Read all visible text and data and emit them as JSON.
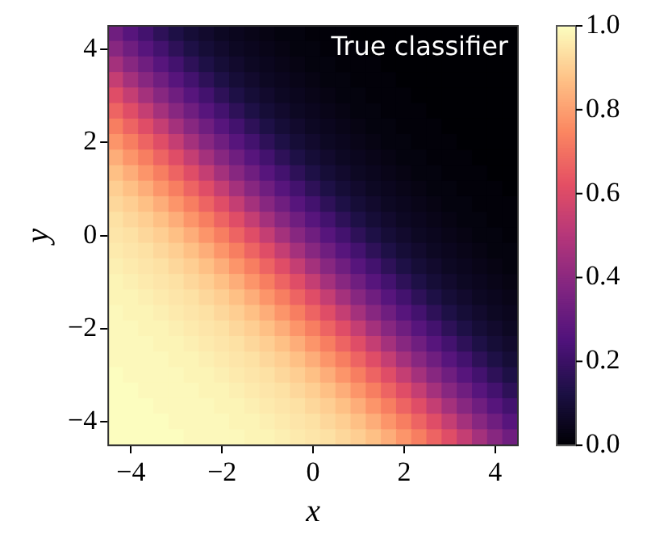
{
  "chart_data": {
    "type": "heatmap",
    "title": "True classifier",
    "xlabel": "x",
    "ylabel": "y",
    "categories": [
      null,
      "−4",
      null,
      null,
      null,
      null,
      null,
      "−2",
      null,
      null,
      null,
      null,
      null,
      "0",
      null,
      null,
      null,
      null,
      null,
      "2",
      null,
      null,
      null,
      null,
      null,
      "4",
      null
    ],
    "y_categories": [
      null,
      "4",
      null,
      null,
      null,
      null,
      null,
      "2",
      null,
      null,
      null,
      null,
      null,
      "0",
      null,
      null,
      null,
      null,
      null,
      "−2",
      null,
      null,
      null,
      null,
      null,
      "−4",
      null
    ],
    "cells": [
      [
        0.33,
        0.27,
        0.22,
        0.17,
        0.13,
        0.1,
        0.08,
        0.06,
        0.05,
        0.04,
        0.03,
        0.02,
        0.02,
        0.01,
        0.01,
        0.01,
        0,
        0,
        0,
        0,
        0,
        0,
        0,
        0,
        0,
        0,
        0
      ],
      [
        0.39,
        0.33,
        0.27,
        0.22,
        0.17,
        0.13,
        0.1,
        0.08,
        0.06,
        0.05,
        0.04,
        0.03,
        0.02,
        0.02,
        0.01,
        0.01,
        0.01,
        0,
        0,
        0,
        0,
        0,
        0,
        0,
        0,
        0,
        0
      ],
      [
        0.46,
        0.39,
        0.33,
        0.27,
        0.22,
        0.17,
        0.13,
        0.1,
        0.08,
        0.06,
        0.05,
        0.04,
        0.03,
        0.02,
        0.02,
        0.01,
        0.01,
        0.01,
        0,
        0,
        0,
        0,
        0,
        0,
        0,
        0,
        0
      ],
      [
        0.54,
        0.46,
        0.39,
        0.33,
        0.27,
        0.22,
        0.17,
        0.13,
        0.1,
        0.08,
        0.06,
        0.05,
        0.04,
        0.03,
        0.02,
        0.02,
        0.01,
        0.01,
        0.01,
        0,
        0,
        0,
        0,
        0,
        0,
        0,
        0
      ],
      [
        0.61,
        0.54,
        0.46,
        0.39,
        0.33,
        0.27,
        0.22,
        0.17,
        0.13,
        0.1,
        0.08,
        0.06,
        0.05,
        0.04,
        0.03,
        0.02,
        0.02,
        0.01,
        0.01,
        0.01,
        0,
        0,
        0,
        0,
        0,
        0,
        0
      ],
      [
        0.67,
        0.61,
        0.54,
        0.46,
        0.39,
        0.33,
        0.27,
        0.22,
        0.17,
        0.13,
        0.1,
        0.08,
        0.06,
        0.05,
        0.04,
        0.03,
        0.02,
        0.02,
        0.01,
        0.01,
        0.01,
        0,
        0,
        0,
        0,
        0,
        0
      ],
      [
        0.73,
        0.67,
        0.61,
        0.54,
        0.46,
        0.39,
        0.33,
        0.27,
        0.22,
        0.17,
        0.13,
        0.1,
        0.08,
        0.06,
        0.05,
        0.04,
        0.03,
        0.02,
        0.02,
        0.01,
        0.01,
        0.01,
        0,
        0,
        0,
        0,
        0
      ],
      [
        0.78,
        0.73,
        0.67,
        0.61,
        0.54,
        0.46,
        0.39,
        0.33,
        0.27,
        0.22,
        0.17,
        0.13,
        0.1,
        0.08,
        0.06,
        0.05,
        0.04,
        0.03,
        0.02,
        0.02,
        0.01,
        0.01,
        0.01,
        0,
        0,
        0,
        0
      ],
      [
        0.83,
        0.78,
        0.73,
        0.67,
        0.61,
        0.54,
        0.46,
        0.39,
        0.33,
        0.27,
        0.22,
        0.17,
        0.13,
        0.1,
        0.08,
        0.06,
        0.05,
        0.04,
        0.03,
        0.02,
        0.02,
        0.01,
        0.01,
        0.01,
        0,
        0,
        0
      ],
      [
        0.87,
        0.83,
        0.78,
        0.73,
        0.67,
        0.61,
        0.54,
        0.46,
        0.39,
        0.33,
        0.27,
        0.22,
        0.17,
        0.13,
        0.1,
        0.08,
        0.06,
        0.05,
        0.04,
        0.03,
        0.02,
        0.02,
        0.01,
        0.01,
        0.01,
        0,
        0
      ],
      [
        0.9,
        0.87,
        0.83,
        0.78,
        0.73,
        0.67,
        0.61,
        0.54,
        0.46,
        0.39,
        0.33,
        0.27,
        0.22,
        0.17,
        0.13,
        0.1,
        0.08,
        0.06,
        0.05,
        0.04,
        0.03,
        0.02,
        0.02,
        0.01,
        0.01,
        0.01,
        0
      ],
      [
        0.92,
        0.9,
        0.87,
        0.83,
        0.78,
        0.73,
        0.67,
        0.61,
        0.54,
        0.46,
        0.39,
        0.33,
        0.27,
        0.22,
        0.17,
        0.13,
        0.1,
        0.08,
        0.06,
        0.05,
        0.04,
        0.03,
        0.02,
        0.02,
        0.01,
        0.01,
        0.01
      ],
      [
        0.94,
        0.92,
        0.9,
        0.87,
        0.83,
        0.78,
        0.73,
        0.67,
        0.61,
        0.54,
        0.46,
        0.39,
        0.33,
        0.27,
        0.22,
        0.17,
        0.13,
        0.1,
        0.08,
        0.06,
        0.05,
        0.04,
        0.03,
        0.02,
        0.02,
        0.01,
        0.01
      ],
      [
        0.95,
        0.94,
        0.92,
        0.9,
        0.87,
        0.83,
        0.78,
        0.73,
        0.67,
        0.61,
        0.54,
        0.46,
        0.39,
        0.33,
        0.27,
        0.22,
        0.17,
        0.13,
        0.1,
        0.08,
        0.06,
        0.05,
        0.04,
        0.03,
        0.02,
        0.02,
        0.01
      ],
      [
        0.96,
        0.95,
        0.94,
        0.92,
        0.9,
        0.87,
        0.83,
        0.78,
        0.73,
        0.67,
        0.61,
        0.54,
        0.46,
        0.39,
        0.33,
        0.27,
        0.22,
        0.17,
        0.13,
        0.1,
        0.08,
        0.06,
        0.05,
        0.04,
        0.03,
        0.02,
        0.02
      ],
      [
        0.97,
        0.96,
        0.95,
        0.94,
        0.92,
        0.9,
        0.87,
        0.83,
        0.78,
        0.73,
        0.67,
        0.61,
        0.54,
        0.46,
        0.39,
        0.33,
        0.27,
        0.22,
        0.17,
        0.13,
        0.1,
        0.08,
        0.06,
        0.05,
        0.04,
        0.03,
        0.02
      ],
      [
        0.98,
        0.97,
        0.96,
        0.95,
        0.94,
        0.92,
        0.9,
        0.87,
        0.83,
        0.78,
        0.73,
        0.67,
        0.61,
        0.54,
        0.46,
        0.39,
        0.33,
        0.27,
        0.22,
        0.17,
        0.13,
        0.1,
        0.08,
        0.06,
        0.05,
        0.04,
        0.03
      ],
      [
        0.98,
        0.98,
        0.97,
        0.96,
        0.95,
        0.94,
        0.92,
        0.9,
        0.87,
        0.83,
        0.78,
        0.73,
        0.67,
        0.61,
        0.54,
        0.46,
        0.39,
        0.33,
        0.27,
        0.22,
        0.17,
        0.13,
        0.1,
        0.08,
        0.06,
        0.05,
        0.04
      ],
      [
        0.99,
        0.98,
        0.98,
        0.97,
        0.96,
        0.95,
        0.94,
        0.92,
        0.9,
        0.87,
        0.83,
        0.78,
        0.73,
        0.67,
        0.61,
        0.54,
        0.46,
        0.39,
        0.33,
        0.27,
        0.22,
        0.17,
        0.13,
        0.1,
        0.08,
        0.06,
        0.05
      ],
      [
        0.99,
        0.99,
        0.98,
        0.98,
        0.97,
        0.96,
        0.95,
        0.94,
        0.92,
        0.9,
        0.87,
        0.83,
        0.78,
        0.73,
        0.67,
        0.61,
        0.54,
        0.46,
        0.39,
        0.33,
        0.27,
        0.22,
        0.17,
        0.13,
        0.1,
        0.08,
        0.06
      ],
      [
        0.99,
        0.99,
        0.99,
        0.98,
        0.98,
        0.97,
        0.96,
        0.95,
        0.94,
        0.92,
        0.9,
        0.87,
        0.83,
        0.78,
        0.73,
        0.67,
        0.61,
        0.54,
        0.46,
        0.39,
        0.33,
        0.27,
        0.22,
        0.17,
        0.13,
        0.1,
        0.08
      ],
      [
        0.99,
        0.99,
        0.99,
        0.99,
        0.98,
        0.98,
        0.97,
        0.96,
        0.95,
        0.94,
        0.92,
        0.9,
        0.87,
        0.83,
        0.78,
        0.73,
        0.67,
        0.61,
        0.54,
        0.46,
        0.39,
        0.33,
        0.27,
        0.22,
        0.17,
        0.13,
        0.1
      ],
      [
        1,
        0.99,
        0.99,
        0.99,
        0.99,
        0.98,
        0.98,
        0.97,
        0.96,
        0.95,
        0.94,
        0.92,
        0.9,
        0.87,
        0.83,
        0.78,
        0.73,
        0.67,
        0.61,
        0.54,
        0.46,
        0.39,
        0.33,
        0.27,
        0.22,
        0.17,
        0.13
      ],
      [
        1,
        1,
        0.99,
        0.99,
        0.99,
        0.99,
        0.98,
        0.98,
        0.97,
        0.96,
        0.95,
        0.94,
        0.92,
        0.9,
        0.87,
        0.83,
        0.78,
        0.73,
        0.67,
        0.61,
        0.54,
        0.46,
        0.39,
        0.33,
        0.27,
        0.22,
        0.17
      ],
      [
        1,
        1,
        1,
        0.99,
        0.99,
        0.99,
        0.99,
        0.98,
        0.98,
        0.97,
        0.96,
        0.95,
        0.94,
        0.92,
        0.9,
        0.87,
        0.83,
        0.78,
        0.73,
        0.67,
        0.61,
        0.54,
        0.46,
        0.39,
        0.33,
        0.27,
        0.22
      ],
      [
        1,
        1,
        1,
        1,
        0.99,
        0.99,
        0.99,
        0.99,
        0.98,
        0.98,
        0.97,
        0.96,
        0.95,
        0.94,
        0.92,
        0.9,
        0.87,
        0.83,
        0.78,
        0.73,
        0.67,
        0.61,
        0.54,
        0.46,
        0.39,
        0.33,
        0.27
      ],
      [
        1,
        1,
        1,
        1,
        1,
        0.99,
        0.99,
        0.99,
        0.99,
        0.98,
        0.98,
        0.97,
        0.96,
        0.95,
        0.94,
        0.92,
        0.9,
        0.87,
        0.83,
        0.78,
        0.73,
        0.67,
        0.61,
        0.54,
        0.46,
        0.39,
        0.33
      ]
    ],
    "clim": [
      0,
      1
    ],
    "cticks": [
      {
        "value": 0,
        "label": "0.0"
      },
      {
        "value": 0.2,
        "label": "0.2"
      },
      {
        "value": 0.4,
        "label": "0.4"
      },
      {
        "value": 0.6,
        "label": "0.6"
      },
      {
        "value": 0.8,
        "label": "0.8"
      },
      {
        "value": 1,
        "label": "1.0"
      }
    ]
  }
}
